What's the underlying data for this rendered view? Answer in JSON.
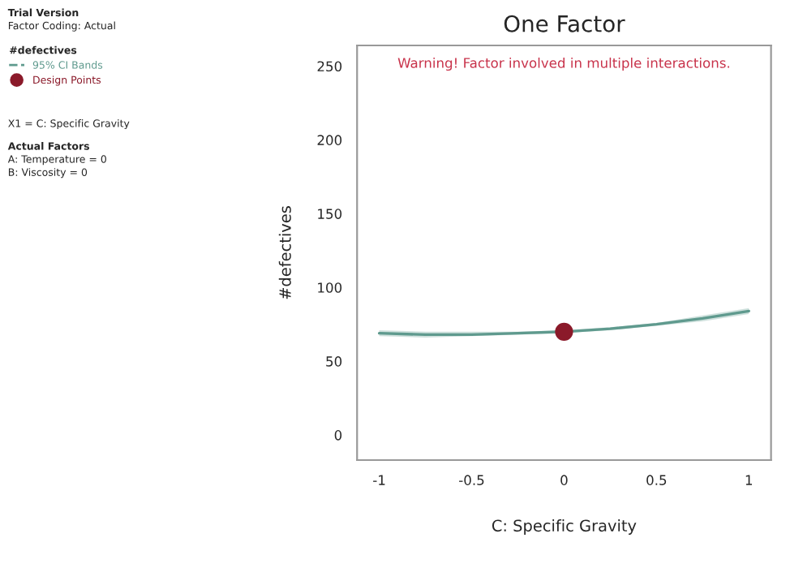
{
  "chart_data": {
    "type": "line",
    "title": "One Factor",
    "xlabel": "C: Specific Gravity",
    "ylabel": "#defectives",
    "legend_title": "#defectives",
    "annotations": [
      "Trial Version",
      "Factor Coding: Actual",
      "X1 = C: Specific Gravity",
      "Actual Factors",
      "A: Temperature = 0",
      "B: Viscosity = 0",
      "Warning! Factor involved in multiple interactions."
    ],
    "series": [
      {
        "name": "95% CI Bands",
        "color": "#5f9a8e",
        "x": [
          -1,
          -0.75,
          -0.5,
          -0.25,
          0,
          0.25,
          0.5,
          0.75,
          1
        ],
        "values": [
          69,
          68,
          68,
          69,
          70,
          72,
          75,
          79,
          84
        ],
        "lower": [
          67,
          66,
          67,
          68,
          69,
          71,
          74,
          77,
          82
        ],
        "upper": [
          71,
          70,
          70,
          70,
          71,
          73,
          76,
          81,
          86
        ]
      },
      {
        "name": "Design Points",
        "type": "scatter",
        "color": "#8b1a2a",
        "x": [
          0
        ],
        "values": [
          70
        ]
      }
    ],
    "xlim": [
      -1.12,
      1.12
    ],
    "ylim": [
      -17,
      264
    ],
    "xticks": [
      -1,
      -0.5,
      0,
      0.5,
      1
    ],
    "yticks": [
      0,
      50,
      100,
      150,
      200,
      250
    ],
    "grid": false,
    "legend": "left"
  }
}
